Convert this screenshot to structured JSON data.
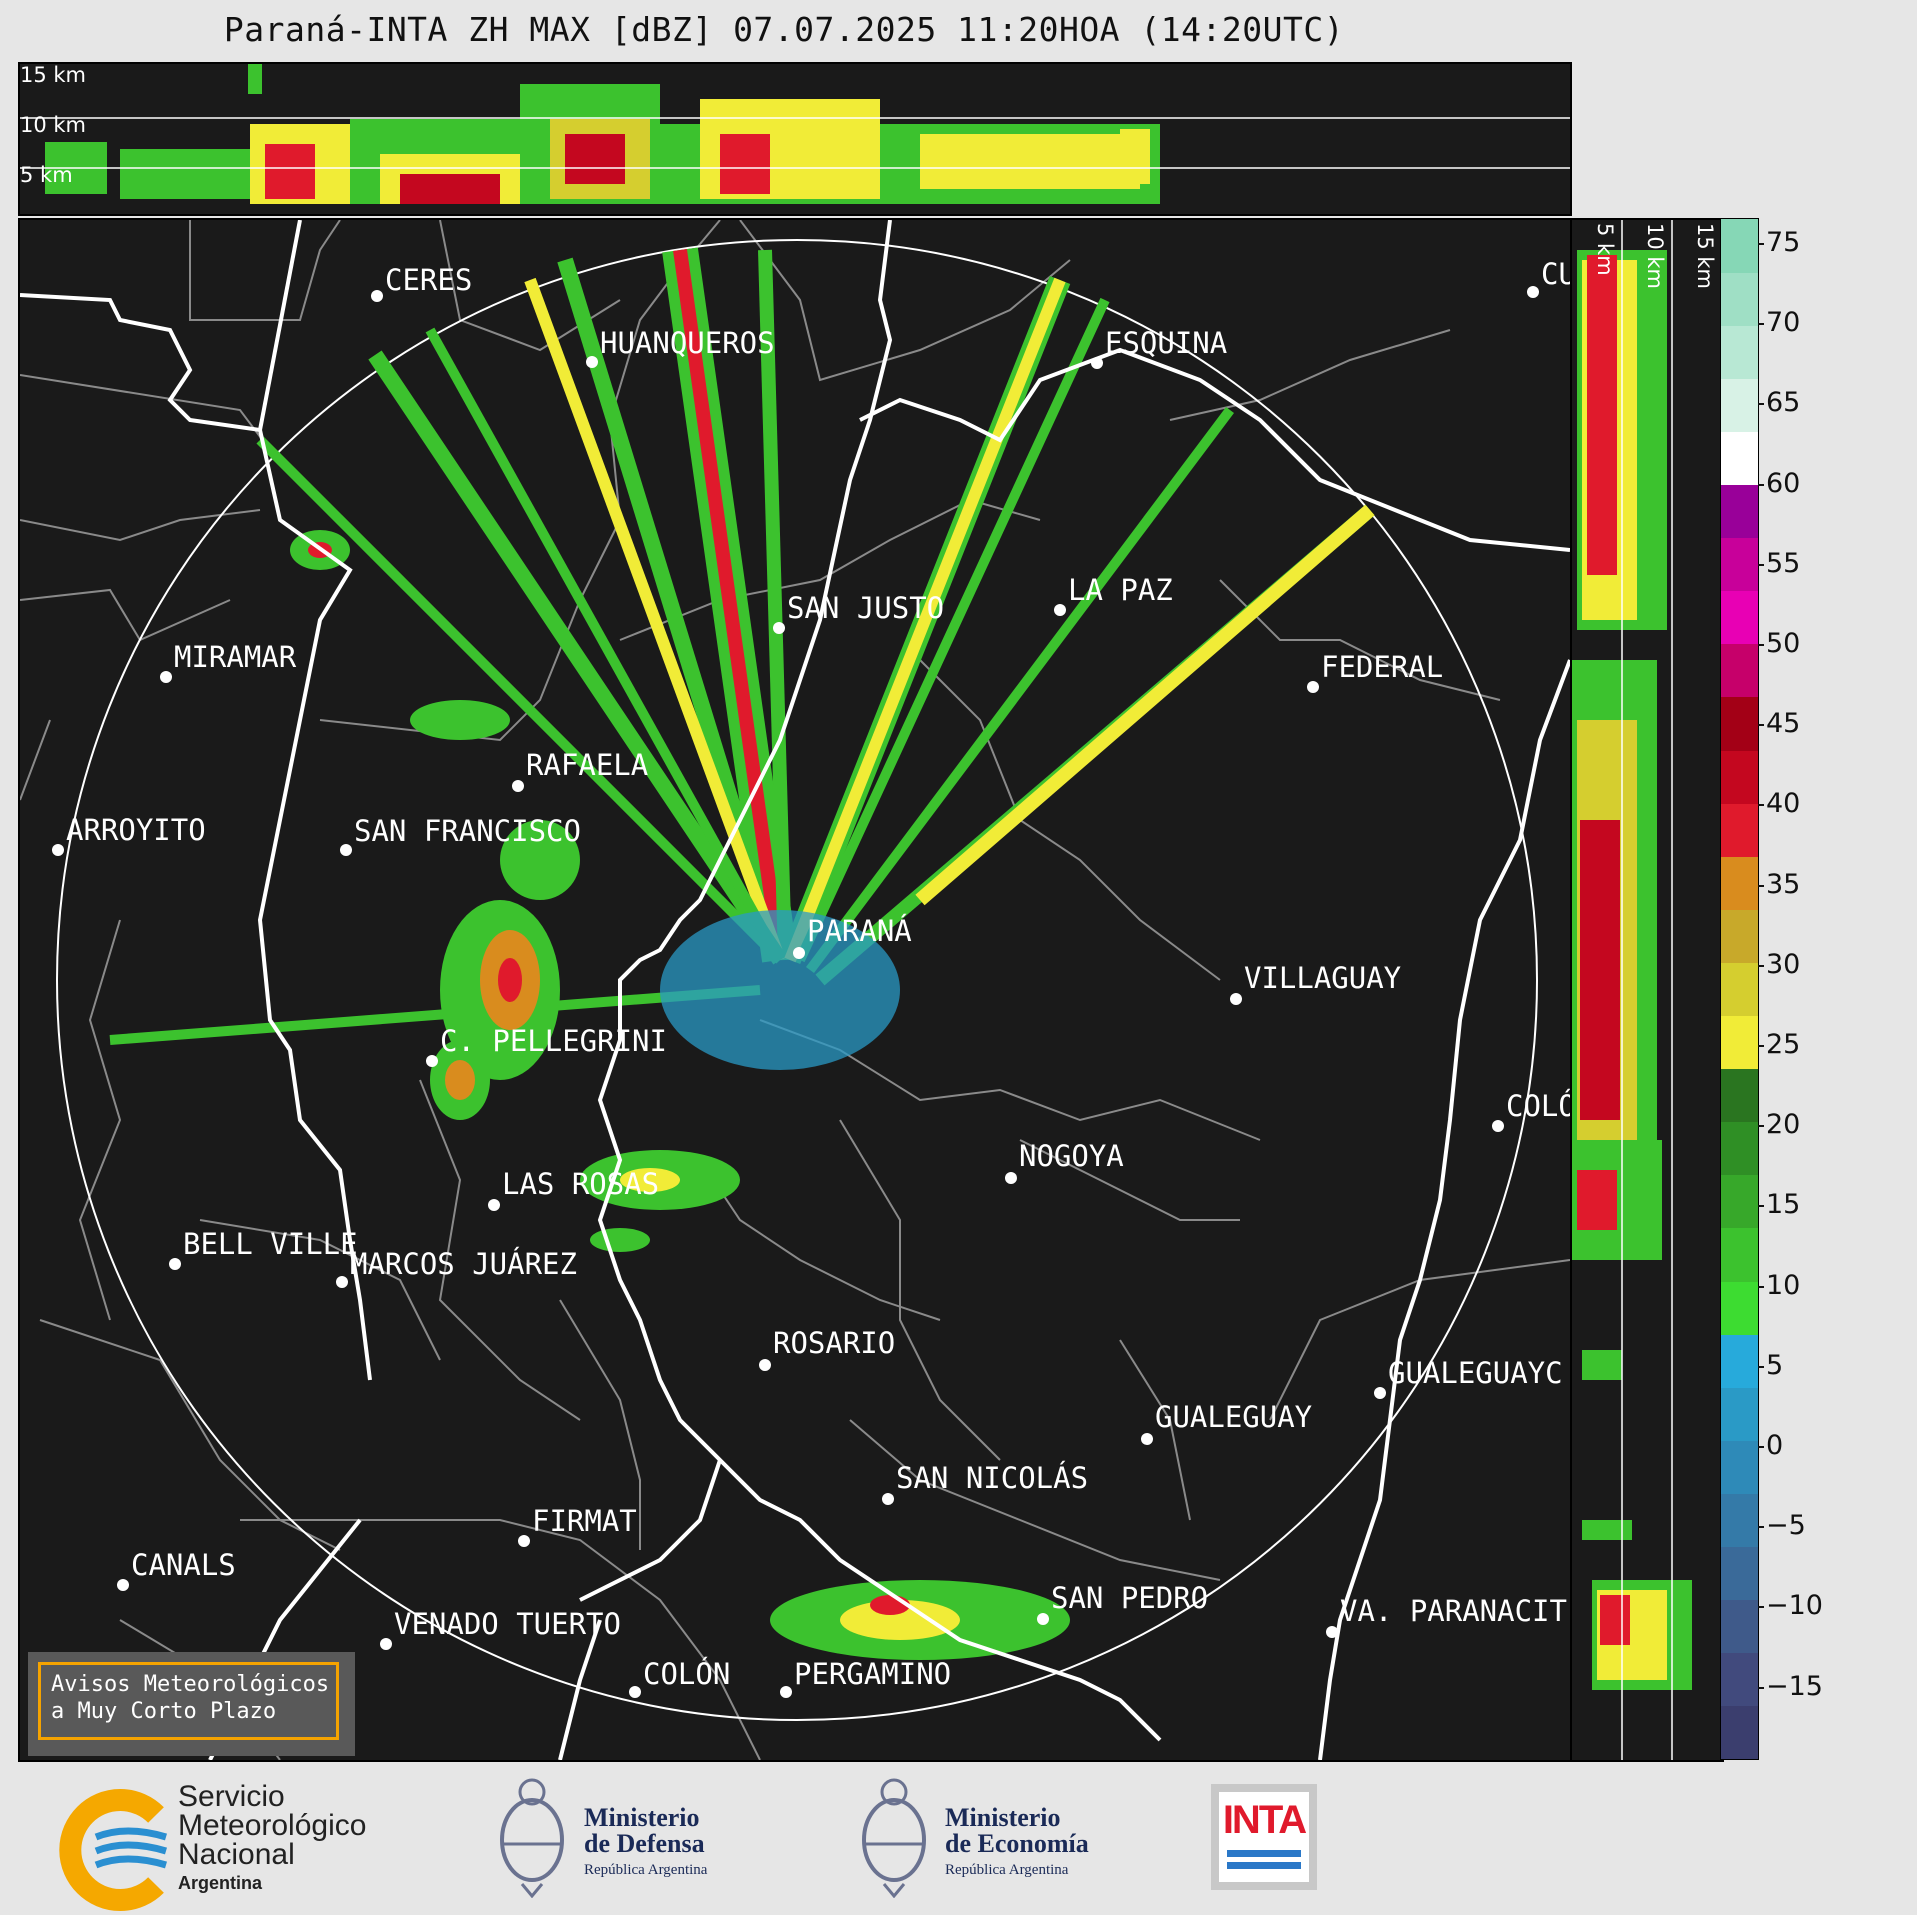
{
  "header": {
    "title": "Paraná-INTA ZH MAX [dBZ] 07.07.2025 11:20HOA (14:20UTC)"
  },
  "height_panels": {
    "top_labels": [
      "15 km",
      "10 km",
      "5 km"
    ],
    "side_labels": [
      "5 km",
      "10 km",
      "15 km"
    ]
  },
  "cities": [
    {
      "name": "CERES"
    },
    {
      "name": "HUANQUEROS"
    },
    {
      "name": "ESQUINA"
    },
    {
      "name": "CU"
    },
    {
      "name": "SAN JUSTO"
    },
    {
      "name": "LA PAZ"
    },
    {
      "name": "MIRAMAR"
    },
    {
      "name": "FEDERAL"
    },
    {
      "name": "RAFAELA"
    },
    {
      "name": "ARROYITO"
    },
    {
      "name": "SAN FRANCISCO"
    },
    {
      "name": "PARANÁ"
    },
    {
      "name": "VILLAGUAY"
    },
    {
      "name": "C. PELLEGRINI"
    },
    {
      "name": "COLÓ"
    },
    {
      "name": "NOGOYA"
    },
    {
      "name": "LAS ROSAS"
    },
    {
      "name": "BELL VILLE"
    },
    {
      "name": "MARCOS JUÁREZ"
    },
    {
      "name": "ROSARIO"
    },
    {
      "name": "GUALEGUAYC"
    },
    {
      "name": "GUALEGUAY"
    },
    {
      "name": "SAN NICOLÁS"
    },
    {
      "name": "FIRMAT"
    },
    {
      "name": "CANALS"
    },
    {
      "name": "SAN PEDRO"
    },
    {
      "name": "VENADO TUERTO"
    },
    {
      "name": "VA. PARANACIT"
    },
    {
      "name": "COLÓN"
    },
    {
      "name": "PERGAMINO"
    }
  ],
  "colorbar": {
    "unit": "dBZ",
    "ticks": [
      "75",
      "70",
      "65",
      "60",
      "55",
      "50",
      "45",
      "40",
      "35",
      "30",
      "25",
      "20",
      "15",
      "10",
      "5",
      "0",
      "−5",
      "−10",
      "−15"
    ],
    "colors": [
      "#3b3e6e",
      "#414a7d",
      "#3f5a8a",
      "#3a6a99",
      "#347aa8",
      "#2e8ab8",
      "#2a9ac6",
      "#27aadb",
      "#3ddc31",
      "#3cc22e",
      "#37a82a",
      "#2f8f25",
      "#2a7520",
      "#f1ec37",
      "#d5ce2f",
      "#c8a92a",
      "#d98c1e",
      "#e01a2c",
      "#c4071f",
      "#a30016",
      "#c6006a",
      "#e800b4",
      "#c8009a",
      "#990099",
      "#ffffff",
      "#d8f2e6",
      "#b8e8d4",
      "#9fdfc5",
      "#86d7b6"
    ]
  },
  "warning_box": {
    "line1": "Avisos Meteorológicos",
    "line2": "a Muy Corto Plazo"
  },
  "footer": {
    "smn_line1": "Servicio",
    "smn_line2": "Meteorológico",
    "smn_line3": "Nacional",
    "smn_line4": "Argentina",
    "defensa_line1": "Ministerio",
    "defensa_line2": "de Defensa",
    "defensa_line3": "República Argentina",
    "economia_line1": "Ministerio",
    "economia_line2": "de Economía",
    "economia_line3": "República Argentina",
    "inta": "INTA"
  }
}
